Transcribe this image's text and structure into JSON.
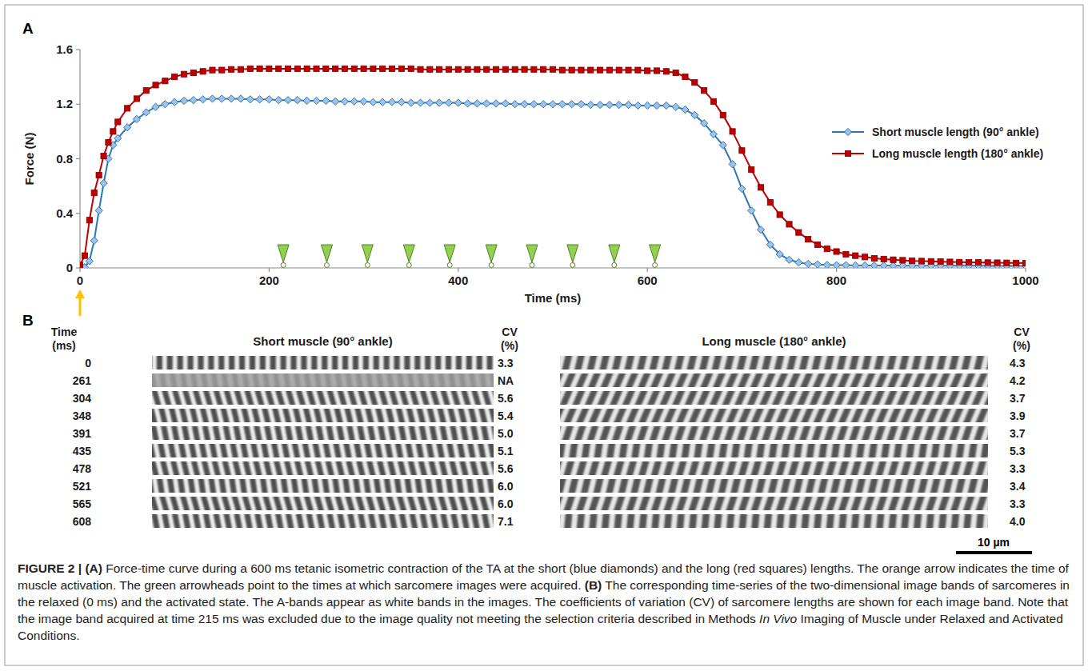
{
  "chart_data": {
    "type": "line",
    "panel_label": "A",
    "xlabel": "Time (ms)",
    "ylabel": "Force (N)",
    "xlim": [
      0,
      1000
    ],
    "ylim": [
      0,
      1.6
    ],
    "xticks": [
      0,
      200,
      400,
      600,
      800,
      1000
    ],
    "yticks": [
      0,
      0.4,
      0.8,
      1.2,
      1.6
    ],
    "grid": false,
    "legend": "right",
    "activation_time": 0,
    "image_times": [
      215,
      261,
      304,
      348,
      391,
      435,
      478,
      521,
      565,
      608
    ],
    "series": [
      {
        "name": "Short muscle length (90° ankle)",
        "color": "#2e75b6",
        "marker": "diamond",
        "x": [
          0,
          5,
          10,
          15,
          20,
          25,
          30,
          35,
          40,
          50,
          60,
          70,
          80,
          90,
          100,
          110,
          120,
          130,
          140,
          150,
          160,
          170,
          180,
          190,
          200,
          210,
          220,
          230,
          240,
          250,
          260,
          270,
          280,
          290,
          300,
          310,
          320,
          330,
          340,
          350,
          360,
          370,
          380,
          390,
          400,
          410,
          420,
          430,
          440,
          450,
          460,
          470,
          480,
          490,
          500,
          510,
          520,
          530,
          540,
          550,
          560,
          570,
          580,
          590,
          600,
          610,
          620,
          630,
          640,
          650,
          660,
          670,
          680,
          690,
          700,
          710,
          720,
          730,
          740,
          750,
          760,
          770,
          780,
          790,
          800,
          810,
          820,
          830,
          840,
          850,
          860,
          870,
          880,
          890,
          900,
          910,
          920,
          930,
          940,
          950,
          960,
          970,
          980,
          990,
          1000
        ],
        "values": [
          0,
          0.005,
          0.05,
          0.2,
          0.42,
          0.62,
          0.8,
          0.9,
          0.95,
          1.03,
          1.09,
          1.14,
          1.18,
          1.2,
          1.215,
          1.225,
          1.23,
          1.235,
          1.24,
          1.24,
          1.24,
          1.24,
          1.235,
          1.235,
          1.235,
          1.23,
          1.23,
          1.23,
          1.225,
          1.225,
          1.225,
          1.22,
          1.22,
          1.22,
          1.22,
          1.215,
          1.215,
          1.215,
          1.215,
          1.21,
          1.21,
          1.21,
          1.21,
          1.21,
          1.21,
          1.205,
          1.205,
          1.205,
          1.205,
          1.205,
          1.2,
          1.2,
          1.2,
          1.2,
          1.2,
          1.2,
          1.2,
          1.2,
          1.195,
          1.195,
          1.195,
          1.195,
          1.195,
          1.19,
          1.19,
          1.19,
          1.19,
          1.18,
          1.16,
          1.12,
          1.06,
          0.98,
          0.9,
          0.76,
          0.58,
          0.42,
          0.28,
          0.17,
          0.1,
          0.06,
          0.04,
          0.03,
          0.025,
          0.022,
          0.02,
          0.02,
          0.018,
          0.018,
          0.017,
          0.017,
          0.016,
          0.016,
          0.016,
          0.016,
          0.016,
          0.016,
          0.016,
          0.016,
          0.016,
          0.016,
          0.015,
          0.015,
          0.015,
          0.015,
          0.015
        ]
      },
      {
        "name": "Long muscle length (180° ankle)",
        "color": "#c00000",
        "marker": "square",
        "x": [
          0,
          5,
          10,
          15,
          20,
          25,
          30,
          35,
          40,
          50,
          60,
          70,
          80,
          90,
          100,
          110,
          120,
          130,
          140,
          150,
          160,
          170,
          180,
          190,
          200,
          210,
          220,
          230,
          240,
          250,
          260,
          270,
          280,
          290,
          300,
          310,
          320,
          330,
          340,
          350,
          360,
          370,
          380,
          390,
          400,
          410,
          420,
          430,
          440,
          450,
          460,
          470,
          480,
          490,
          500,
          510,
          520,
          530,
          540,
          550,
          560,
          570,
          580,
          590,
          600,
          610,
          620,
          630,
          640,
          650,
          660,
          670,
          680,
          690,
          700,
          710,
          720,
          730,
          740,
          750,
          760,
          770,
          780,
          790,
          800,
          810,
          820,
          830,
          840,
          850,
          860,
          870,
          880,
          890,
          900,
          910,
          920,
          930,
          940,
          950,
          960,
          970,
          980,
          990,
          1000
        ],
        "values": [
          0.02,
          0.09,
          0.35,
          0.55,
          0.68,
          0.82,
          0.92,
          1.0,
          1.07,
          1.17,
          1.24,
          1.3,
          1.34,
          1.37,
          1.4,
          1.42,
          1.43,
          1.44,
          1.45,
          1.45,
          1.455,
          1.455,
          1.46,
          1.46,
          1.46,
          1.46,
          1.46,
          1.46,
          1.46,
          1.46,
          1.46,
          1.46,
          1.46,
          1.46,
          1.46,
          1.46,
          1.46,
          1.46,
          1.46,
          1.46,
          1.455,
          1.455,
          1.455,
          1.455,
          1.455,
          1.455,
          1.455,
          1.455,
          1.455,
          1.455,
          1.455,
          1.455,
          1.455,
          1.455,
          1.455,
          1.45,
          1.45,
          1.45,
          1.45,
          1.45,
          1.45,
          1.45,
          1.45,
          1.45,
          1.445,
          1.445,
          1.44,
          1.43,
          1.4,
          1.36,
          1.3,
          1.22,
          1.12,
          1.0,
          0.86,
          0.72,
          0.59,
          0.48,
          0.39,
          0.32,
          0.26,
          0.21,
          0.17,
          0.14,
          0.12,
          0.1,
          0.09,
          0.08,
          0.07,
          0.065,
          0.06,
          0.056,
          0.052,
          0.05,
          0.048,
          0.046,
          0.044,
          0.042,
          0.041,
          0.04,
          0.039,
          0.038,
          0.037,
          0.036,
          0.035
        ]
      }
    ]
  },
  "panel_b": {
    "label": "B",
    "time_header": [
      "Time",
      "(ms)"
    ],
    "cv_header": [
      "CV",
      "(%)"
    ],
    "times": [
      "0",
      "261",
      "304",
      "348",
      "391",
      "435",
      "478",
      "521",
      "565",
      "608"
    ],
    "short": {
      "title": "Short muscle (90° ankle)",
      "cv": [
        "3.3",
        "NA",
        "5.6",
        "5.4",
        "5.0",
        "5.1",
        "5.6",
        "6.0",
        "6.0",
        "7.1"
      ]
    },
    "long": {
      "title": "Long muscle (180° ankle)",
      "cv": [
        "4.3",
        "4.2",
        "3.7",
        "3.9",
        "3.7",
        "5.3",
        "3.3",
        "3.4",
        "3.3",
        "4.0"
      ]
    },
    "scale_bar": "10 µm"
  },
  "caption": [
    {
      "text": "FIGURE 2 | ",
      "style": "bold"
    },
    {
      "text": "(A)",
      "style": "bold"
    },
    {
      "text": " Force-time curve during a 600 ms tetanic isometric contraction of the TA at the short (blue diamonds) and the long (red squares) lengths. The orange arrow indicates the time of muscle activation. The green arrowheads point to the times at which sarcomere images were acquired. ",
      "style": "normal"
    },
    {
      "text": "(B)",
      "style": "bold"
    },
    {
      "text": " The corresponding time-series of the two-dimensional image bands of sarcomeres in the relaxed (0 ms) and the activated state. The A-bands appear as white bands in the images. The coefficients of variation (CV) of sarcomere lengths are shown for each image band. Note that the image band acquired at time 215 ms was excluded due to the image quality not meeting the selection criteria described in Methods ",
      "style": "normal"
    },
    {
      "text": "In Vivo",
      "style": "italic"
    },
    {
      "text": " Imaging of Muscle under Relaxed and Activated Conditions.",
      "style": "normal"
    }
  ]
}
